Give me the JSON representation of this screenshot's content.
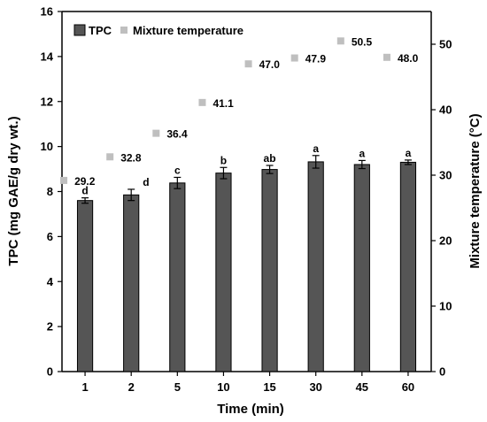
{
  "chart_data": {
    "type": "bar",
    "categories": [
      "1",
      "2",
      "5",
      "10",
      "15",
      "30",
      "45",
      "60"
    ],
    "xlabel": "Time (min)",
    "ylabel": "TPC  (mg GAE/g dry wt.)",
    "y2label": "Mixture temperature (°C)",
    "ylim": [
      0,
      16
    ],
    "y2lim": [
      0,
      55
    ],
    "yticks": [
      "0",
      "2",
      "4",
      "6",
      "8",
      "10",
      "12",
      "14",
      "16"
    ],
    "y2ticks": [
      "0",
      "10",
      "20",
      "30",
      "40",
      "50"
    ],
    "legend_placement": "top-left",
    "grid": false,
    "series": [
      {
        "name": "TPC",
        "kind": "bar",
        "axis": "left",
        "color": "#555555",
        "values": [
          7.6,
          7.85,
          8.38,
          8.82,
          8.98,
          9.32,
          9.2,
          9.3
        ],
        "errors": [
          0.12,
          0.25,
          0.25,
          0.25,
          0.18,
          0.28,
          0.18,
          0.1
        ],
        "labels": [
          "d",
          "d",
          "c",
          "b",
          "ab",
          "a",
          "a",
          "a"
        ]
      },
      {
        "name": "Mixture temperature",
        "kind": "scatter",
        "axis": "right",
        "color": "#bfbfbf",
        "values": [
          29.2,
          32.8,
          36.4,
          41.1,
          47.0,
          47.9,
          50.5,
          48.0
        ],
        "labels": [
          "29.2",
          "32.8",
          "36.4",
          "41.1",
          "47.0",
          "47.9",
          "50.5",
          "48.0"
        ]
      }
    ]
  }
}
